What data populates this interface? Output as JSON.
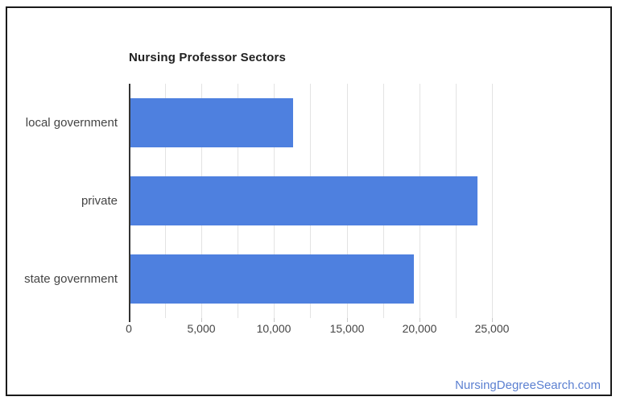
{
  "window": {
    "background": "#ffffff",
    "frame_border_color": "#1a1a1a"
  },
  "watermark": {
    "text": "NursingDegreeSearch.com",
    "color": "#5c80d1"
  },
  "chart_data": {
    "type": "bar",
    "orientation": "horizontal",
    "title": "Nursing Professor Sectors",
    "categories": [
      "local government",
      "private",
      "state government"
    ],
    "values": [
      11300,
      24000,
      19600
    ],
    "xlabel": "",
    "ylabel": "",
    "xlim": [
      0,
      27500
    ],
    "x_tick_values": [
      0,
      5000,
      10000,
      15000,
      20000,
      25000
    ],
    "x_tick_labels": [
      "0",
      "5,000",
      "10,000",
      "15,000",
      "20,000",
      "25,000"
    ],
    "minor_gridline_step": 2500,
    "grid": true,
    "legend": "none",
    "bar_color": "#4e80df",
    "gridline_color": "#e3e3e3",
    "axis_line_color": "#333333",
    "tick_mark_color": "#c9c9c9",
    "title_color": "#212121",
    "label_color": "#444444"
  }
}
